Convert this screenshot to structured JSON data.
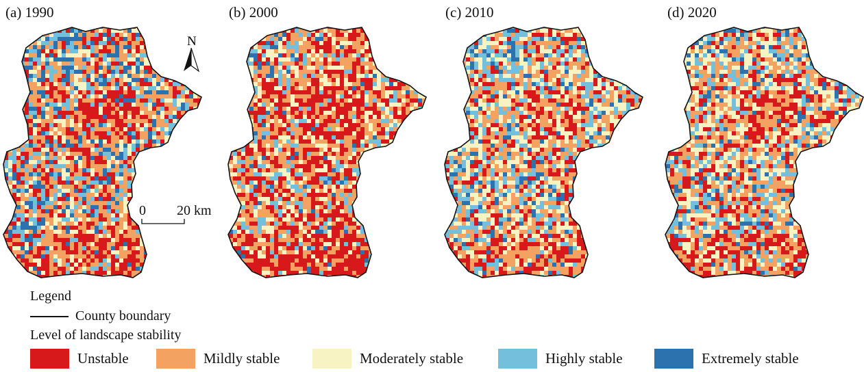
{
  "panels": [
    {
      "title": "(a) 1990",
      "mix": [
        0.22,
        0.3,
        0.18,
        0.16,
        0.14
      ]
    },
    {
      "title": "(b) 2000",
      "mix": [
        0.33,
        0.33,
        0.2,
        0.1,
        0.04
      ]
    },
    {
      "title": "(c) 2010",
      "mix": [
        0.16,
        0.3,
        0.27,
        0.19,
        0.08
      ]
    },
    {
      "title": "(d) 2020",
      "mix": [
        0.18,
        0.33,
        0.27,
        0.15,
        0.07
      ]
    }
  ],
  "north_arrow": "N",
  "scale_bar": {
    "start": "0",
    "end": "20 km"
  },
  "legend": {
    "title": "Legend",
    "boundary_label": "County boundary",
    "stability_title": "Level of landscape stability",
    "classes": [
      {
        "label": "Unstable",
        "color": "#d7191c"
      },
      {
        "label": "Mildly stable",
        "color": "#f4a261"
      },
      {
        "label": "Moderately stable",
        "color": "#f7f3c2"
      },
      {
        "label": "Highly stable",
        "color": "#74c0dc"
      },
      {
        "label": "Extremely stable",
        "color": "#2b72ae"
      }
    ]
  }
}
